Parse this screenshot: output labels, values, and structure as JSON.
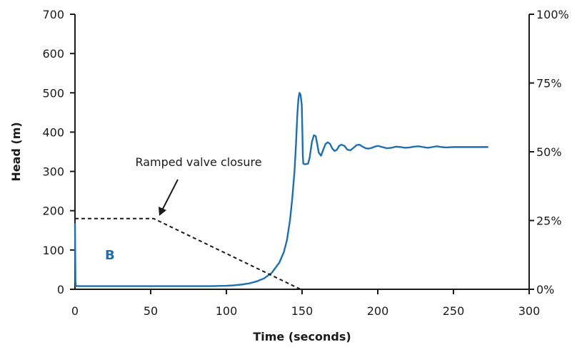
{
  "chart_data": {
    "type": "line",
    "title": "",
    "xlabel": "Time (seconds)",
    "ylabel": "Head (m)",
    "xlim": [
      0,
      300
    ],
    "ylim": [
      0,
      700
    ],
    "y2lim": [
      0,
      100
    ],
    "x_ticks": [
      "0",
      "50",
      "100",
      "150",
      "200",
      "250",
      "300"
    ],
    "y_ticks": [
      "0",
      "100",
      "200",
      "300",
      "400",
      "500",
      "600",
      "700"
    ],
    "y2_ticks": [
      "0%",
      "25%",
      "50%",
      "75%",
      "100%"
    ],
    "grid": false,
    "legend": "none",
    "panel_label": "B",
    "annotation": "Ramped valve closure",
    "colors": {
      "head": "#1f6fae",
      "valve": "#1a1a1a",
      "panel_label": "#1f6fae"
    },
    "series": [
      {
        "axis": "left",
        "style": "solid",
        "points": [
          [
            0,
            168
          ],
          [
            0.3,
            20
          ],
          [
            0.6,
            8
          ],
          [
            5,
            8
          ],
          [
            50,
            8
          ],
          [
            90,
            8
          ],
          [
            100,
            9
          ],
          [
            105,
            10
          ],
          [
            110,
            12
          ],
          [
            115,
            15
          ],
          [
            120,
            20
          ],
          [
            125,
            28
          ],
          [
            130,
            42
          ],
          [
            135,
            68
          ],
          [
            138,
            95
          ],
          [
            140,
            125
          ],
          [
            142,
            175
          ],
          [
            143.5,
            230
          ],
          [
            145,
            300
          ],
          [
            146,
            370
          ],
          [
            146.8,
            440
          ],
          [
            147.6,
            485
          ],
          [
            148.3,
            500
          ],
          [
            149,
            495
          ],
          [
            149.8,
            470
          ],
          [
            150.2,
            400
          ],
          [
            150.5,
            340
          ],
          [
            150.8,
            320
          ],
          [
            152,
            318
          ],
          [
            154,
            320
          ],
          [
            155,
            335
          ],
          [
            156.5,
            375
          ],
          [
            157.8,
            392
          ],
          [
            159,
            390
          ],
          [
            160,
            370
          ],
          [
            161,
            348
          ],
          [
            162.5,
            340
          ],
          [
            164,
            355
          ],
          [
            165.5,
            370
          ],
          [
            167,
            374
          ],
          [
            168.5,
            370
          ],
          [
            170,
            358
          ],
          [
            171.5,
            352
          ],
          [
            173,
            355
          ],
          [
            174.5,
            365
          ],
          [
            176,
            368
          ],
          [
            178,
            365
          ],
          [
            180,
            355
          ],
          [
            182,
            354
          ],
          [
            184,
            360
          ],
          [
            186,
            367
          ],
          [
            188,
            368
          ],
          [
            190,
            363
          ],
          [
            192,
            359
          ],
          [
            194,
            358
          ],
          [
            196,
            360
          ],
          [
            198,
            363
          ],
          [
            200,
            365
          ],
          [
            203,
            362
          ],
          [
            206,
            359
          ],
          [
            209,
            360
          ],
          [
            212,
            363
          ],
          [
            215,
            362
          ],
          [
            218,
            360
          ],
          [
            221,
            361
          ],
          [
            224,
            363
          ],
          [
            227,
            364
          ],
          [
            230,
            362
          ],
          [
            233,
            360
          ],
          [
            236,
            362
          ],
          [
            239,
            364
          ],
          [
            242,
            362
          ],
          [
            245,
            361
          ],
          [
            250,
            362
          ],
          [
            260,
            362
          ],
          [
            273,
            362
          ]
        ]
      },
      {
        "axis": "right",
        "style": "dashed",
        "points": [
          [
            0,
            25.7
          ],
          [
            52,
            25.7
          ],
          [
            149,
            0
          ],
          [
            188,
            0
          ]
        ]
      }
    ]
  }
}
